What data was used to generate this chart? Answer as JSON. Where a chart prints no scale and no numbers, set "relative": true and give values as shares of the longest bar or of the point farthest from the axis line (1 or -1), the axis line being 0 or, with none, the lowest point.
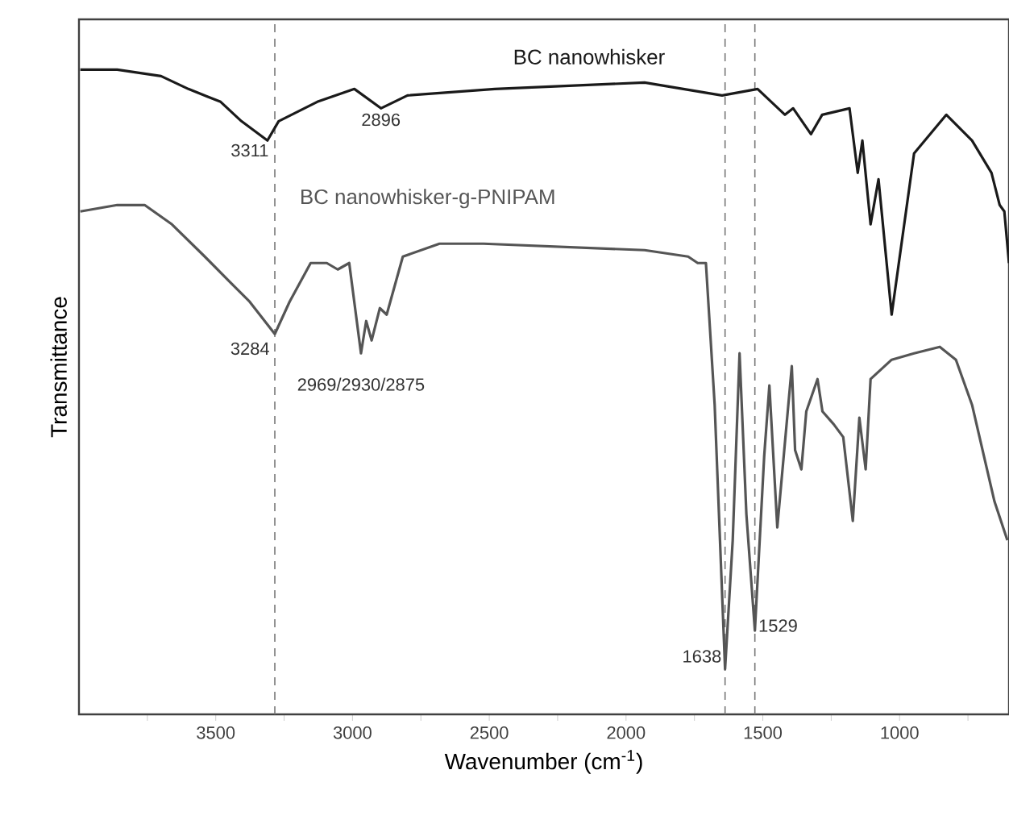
{
  "chart_data": {
    "type": "line",
    "relative": true,
    "xlabel": "Wavenumber (cm$^{-1}$)",
    "ylabel": "Transmittance",
    "xlim": [
      4000,
      600
    ],
    "xticks": [
      {
        "value": 3750,
        "label": null
      },
      3500,
      {
        "value": 3250,
        "label": null
      },
      3000,
      {
        "value": 2750,
        "label": null
      },
      2500,
      {
        "value": 2250,
        "label": null
      },
      2000,
      {
        "value": 1750,
        "label": null
      },
      1500,
      {
        "value": 1250,
        "label": null
      },
      1000,
      {
        "value": 750,
        "label": null
      }
    ],
    "series": [
      {
        "name": "BC nanowhisker",
        "color": "#1a1a1a",
        "x": [
          3995,
          3860,
          3700,
          3600,
          3482,
          3406,
          3311,
          3270,
          3129,
          2993,
          2896,
          2799,
          2480,
          1932,
          1649,
          1519,
          1419,
          1389,
          1324,
          1283,
          1183,
          1153,
          1136,
          1106,
          1077,
          1029,
          1006,
          947,
          829,
          735,
          664,
          634,
          617,
          600
        ],
        "values": [
          1.0,
          1.0,
          0.99,
          0.97,
          0.95,
          0.92,
          0.89,
          0.92,
          0.95,
          0.97,
          0.94,
          0.96,
          0.97,
          0.98,
          0.96,
          0.97,
          0.93,
          0.94,
          0.9,
          0.93,
          0.94,
          0.84,
          0.89,
          0.76,
          0.83,
          0.62,
          0.69,
          0.87,
          0.93,
          0.89,
          0.84,
          0.79,
          0.78,
          0.7
        ]
      },
      {
        "name": "BC nanowhisker-g-PNIPAM",
        "color": "#555555",
        "x": [
          3995,
          3860,
          3760,
          3660,
          3540,
          3447,
          3376,
          3284,
          3230,
          3153,
          3094,
          3054,
          3012,
          2969,
          2950,
          2930,
          2900,
          2875,
          2816,
          2682,
          2521,
          1932,
          1773,
          1738,
          1708,
          1676,
          1638,
          1610,
          1585,
          1560,
          1529,
          1495,
          1476,
          1447,
          1394,
          1382,
          1359,
          1341,
          1300,
          1282,
          1241,
          1206,
          1171,
          1147,
          1124,
          1106,
          1029,
          947,
          853,
          794,
          735,
          653,
          606
        ],
        "values": [
          0.78,
          0.79,
          0.79,
          0.76,
          0.71,
          0.67,
          0.64,
          0.59,
          0.64,
          0.7,
          0.7,
          0.69,
          0.7,
          0.56,
          0.61,
          0.58,
          0.63,
          0.62,
          0.71,
          0.73,
          0.73,
          0.72,
          0.71,
          0.7,
          0.7,
          0.48,
          0.07,
          0.27,
          0.56,
          0.31,
          0.13,
          0.4,
          0.51,
          0.29,
          0.54,
          0.41,
          0.38,
          0.47,
          0.52,
          0.47,
          0.45,
          0.43,
          0.3,
          0.46,
          0.38,
          0.52,
          0.55,
          0.56,
          0.57,
          0.55,
          0.48,
          0.33,
          0.27
        ]
      }
    ],
    "ref_lines": [
      {
        "axis": "x",
        "value": 3284,
        "color": "#777777",
        "line_style": "dashed"
      },
      {
        "axis": "x",
        "value": 1638,
        "color": "#777777",
        "line_style": "dashed"
      },
      {
        "axis": "x",
        "value": 1529,
        "color": "#777777",
        "line_style": "dashed"
      }
    ],
    "annotations": [
      {
        "text": "3311",
        "x": 3311,
        "y": 0.89
      },
      {
        "text": "2896",
        "x": 2896,
        "y": 0.94
      },
      {
        "text": "3284",
        "x": 3284,
        "y": 0.59
      },
      {
        "text": "2969/2930/2875",
        "x": 2969,
        "y": 0.56
      },
      {
        "text": "1638",
        "x": 1638,
        "y": 0.07
      },
      {
        "text": "1529",
        "x": 1529,
        "y": 0.13
      }
    ],
    "grid": false,
    "legend": false,
    "marker": "none",
    "line_style": "solid"
  }
}
